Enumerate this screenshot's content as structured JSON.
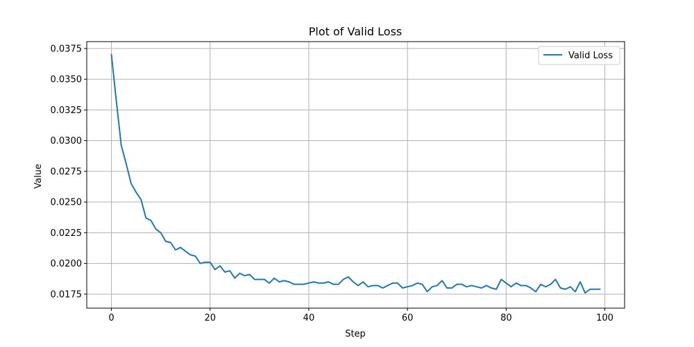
{
  "chart_data": {
    "type": "line",
    "title": "Plot of Valid Loss",
    "xlabel": "Step",
    "ylabel": "Value",
    "xlim": [
      -5,
      104
    ],
    "ylim": [
      0.01636,
      0.03806
    ],
    "xticks": [
      0,
      20,
      40,
      60,
      80,
      100
    ],
    "xtick_labels": [
      "0",
      "20",
      "40",
      "60",
      "80",
      "100"
    ],
    "yticks": [
      0.0175,
      0.02,
      0.0225,
      0.025,
      0.0275,
      0.03,
      0.0325,
      0.035,
      0.0375
    ],
    "ytick_labels": [
      "0.0175",
      "0.0200",
      "0.0225",
      "0.0250",
      "0.0275",
      "0.0300",
      "0.0325",
      "0.0350",
      "0.0375"
    ],
    "grid": true,
    "legend_position": "top-right",
    "series": [
      {
        "name": "Valid Loss",
        "color": "#1f77b4",
        "x": [
          0,
          1,
          2,
          3,
          4,
          5,
          6,
          7,
          8,
          9,
          10,
          11,
          12,
          13,
          14,
          15,
          16,
          17,
          18,
          19,
          20,
          21,
          22,
          23,
          24,
          25,
          26,
          27,
          28,
          29,
          30,
          31,
          32,
          33,
          34,
          35,
          36,
          37,
          38,
          39,
          40,
          41,
          42,
          43,
          44,
          45,
          46,
          47,
          48,
          49,
          50,
          51,
          52,
          53,
          54,
          55,
          56,
          57,
          58,
          59,
          60,
          61,
          62,
          63,
          64,
          65,
          66,
          67,
          68,
          69,
          70,
          71,
          72,
          73,
          74,
          75,
          76,
          77,
          78,
          79,
          80,
          81,
          82,
          83,
          84,
          85,
          86,
          87,
          88,
          89,
          90,
          91,
          92,
          93,
          94,
          95,
          96,
          97,
          98,
          99
        ],
        "values": [
          0.037,
          0.0332,
          0.0296,
          0.0281,
          0.0265,
          0.0258,
          0.0252,
          0.0237,
          0.0235,
          0.0228,
          0.0225,
          0.0218,
          0.0217,
          0.0211,
          0.0213,
          0.021,
          0.0207,
          0.0206,
          0.02,
          0.0201,
          0.0201,
          0.0195,
          0.0198,
          0.0193,
          0.0194,
          0.0188,
          0.0192,
          0.019,
          0.0191,
          0.0187,
          0.0187,
          0.0187,
          0.0184,
          0.0188,
          0.0185,
          0.0186,
          0.0185,
          0.0183,
          0.0183,
          0.0183,
          0.0184,
          0.0185,
          0.0184,
          0.0184,
          0.0185,
          0.0183,
          0.0183,
          0.0187,
          0.0189,
          0.0185,
          0.0182,
          0.0185,
          0.0181,
          0.0182,
          0.0182,
          0.018,
          0.0182,
          0.0184,
          0.0184,
          0.018,
          0.0181,
          0.0182,
          0.0184,
          0.0183,
          0.0177,
          0.0181,
          0.0182,
          0.0186,
          0.018,
          0.018,
          0.0183,
          0.0183,
          0.0181,
          0.0182,
          0.0181,
          0.018,
          0.0182,
          0.018,
          0.0179,
          0.0187,
          0.0184,
          0.0181,
          0.0184,
          0.0182,
          0.0182,
          0.018,
          0.0177,
          0.0183,
          0.0181,
          0.0183,
          0.0187,
          0.018,
          0.0179,
          0.0181,
          0.0177,
          0.0185,
          0.0176,
          0.0179,
          0.0179,
          0.0179
        ]
      }
    ]
  }
}
